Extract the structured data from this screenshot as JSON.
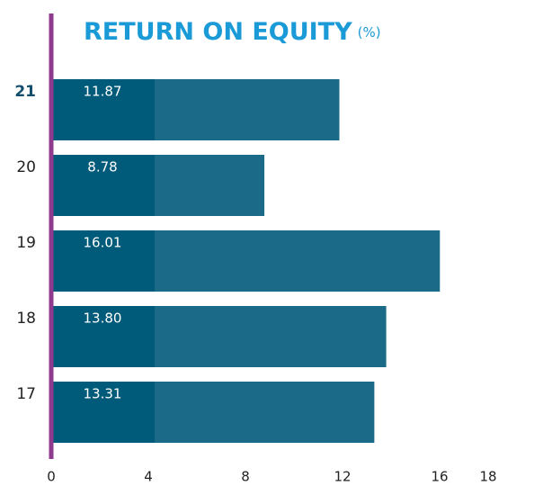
{
  "chart_data": {
    "type": "hbar",
    "title": "RETURN ON EQUITY",
    "unit_label": "(%)",
    "categories": [
      "21",
      "20",
      "19",
      "18",
      "17"
    ],
    "values": [
      11.87,
      8.78,
      16.01,
      13.8,
      13.31
    ],
    "value_labels": [
      "11.87",
      "8.78",
      "16.01",
      "13.80",
      "13.31"
    ],
    "color": "#1b6b88",
    "xlim": [
      0,
      20
    ],
    "xticks": [
      0,
      4,
      8,
      12,
      16,
      18
    ]
  }
}
